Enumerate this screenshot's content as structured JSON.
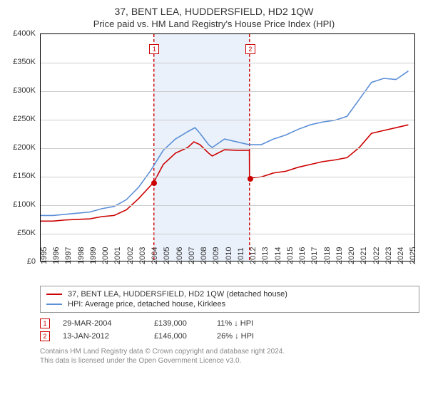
{
  "title": "37, BENT LEA, HUDDERSFIELD, HD2 1QW",
  "subtitle": "Price paid vs. HM Land Registry's House Price Index (HPI)",
  "colors": {
    "price_series": "#cc0000",
    "hpi_series": "#5b8fd6",
    "ref_line": "#cc0000",
    "shade": "#eaf1fb",
    "grid": "#cccccc",
    "axis": "#000000",
    "text": "#333333",
    "footer": "#888888"
  },
  "chart": {
    "type": "line",
    "xlim": [
      1995,
      2025.5
    ],
    "ylim": [
      0,
      400000
    ],
    "ytick_step": 50000,
    "yticks": [
      "£0",
      "£50K",
      "£100K",
      "£150K",
      "£200K",
      "£250K",
      "£300K",
      "£350K",
      "£400K"
    ],
    "xticks": [
      1995,
      1996,
      1997,
      1998,
      1999,
      2000,
      2001,
      2002,
      2003,
      2004,
      2005,
      2006,
      2007,
      2008,
      2009,
      2010,
      2011,
      2012,
      2013,
      2014,
      2015,
      2016,
      2017,
      2018,
      2019,
      2020,
      2021,
      2022,
      2023,
      2024,
      2025
    ],
    "shade_range": [
      2004.24,
      2012.04
    ],
    "ref_lines": [
      {
        "id": "1",
        "x": 2004.24
      },
      {
        "id": "2",
        "x": 2012.04
      }
    ],
    "sale_points": [
      {
        "x": 2004.24,
        "y": 139000
      },
      {
        "x": 2012.04,
        "y": 146000
      }
    ],
    "series": {
      "price": [
        [
          1995,
          70000
        ],
        [
          1996,
          70000
        ],
        [
          1997,
          72000
        ],
        [
          1998,
          73000
        ],
        [
          1999,
          74000
        ],
        [
          2000,
          78000
        ],
        [
          2001,
          80000
        ],
        [
          2002,
          90000
        ],
        [
          2003,
          110000
        ],
        [
          2004.24,
          139000
        ],
        [
          2005,
          170000
        ],
        [
          2006,
          190000
        ],
        [
          2007,
          200000
        ],
        [
          2007.5,
          210000
        ],
        [
          2008,
          205000
        ],
        [
          2008.7,
          190000
        ],
        [
          2009,
          185000
        ],
        [
          2010,
          196000
        ],
        [
          2011,
          195000
        ],
        [
          2012.03,
          195000
        ],
        [
          2012.04,
          146000
        ],
        [
          2013,
          148000
        ],
        [
          2014,
          155000
        ],
        [
          2015,
          158000
        ],
        [
          2016,
          165000
        ],
        [
          2017,
          170000
        ],
        [
          2018,
          175000
        ],
        [
          2019,
          178000
        ],
        [
          2020,
          182000
        ],
        [
          2021,
          200000
        ],
        [
          2022,
          225000
        ],
        [
          2023,
          230000
        ],
        [
          2024,
          235000
        ],
        [
          2025,
          240000
        ]
      ],
      "hpi": [
        [
          1995,
          80000
        ],
        [
          1996,
          80000
        ],
        [
          1997,
          82000
        ],
        [
          1998,
          84000
        ],
        [
          1999,
          86000
        ],
        [
          2000,
          92000
        ],
        [
          2001,
          96000
        ],
        [
          2002,
          108000
        ],
        [
          2003,
          130000
        ],
        [
          2004,
          160000
        ],
        [
          2005,
          195000
        ],
        [
          2006,
          215000
        ],
        [
          2007,
          228000
        ],
        [
          2007.6,
          235000
        ],
        [
          2008,
          225000
        ],
        [
          2008.7,
          205000
        ],
        [
          2009,
          200000
        ],
        [
          2010,
          215000
        ],
        [
          2011,
          210000
        ],
        [
          2012,
          205000
        ],
        [
          2013,
          205000
        ],
        [
          2014,
          215000
        ],
        [
          2015,
          222000
        ],
        [
          2016,
          232000
        ],
        [
          2017,
          240000
        ],
        [
          2018,
          245000
        ],
        [
          2019,
          248000
        ],
        [
          2020,
          255000
        ],
        [
          2021,
          285000
        ],
        [
          2022,
          315000
        ],
        [
          2023,
          322000
        ],
        [
          2024,
          320000
        ],
        [
          2025,
          335000
        ]
      ]
    }
  },
  "legend": [
    {
      "color_key": "price_series",
      "label": "37, BENT LEA, HUDDERSFIELD, HD2 1QW (detached house)"
    },
    {
      "color_key": "hpi_series",
      "label": "HPI: Average price, detached house, Kirklees"
    }
  ],
  "sales": [
    {
      "ref": "1",
      "date": "29-MAR-2004",
      "price": "£139,000",
      "delta": "11% ↓ HPI"
    },
    {
      "ref": "2",
      "date": "13-JAN-2012",
      "price": "£146,000",
      "delta": "26% ↓ HPI"
    }
  ],
  "footer_lines": [
    "Contains HM Land Registry data © Crown copyright and database right 2024.",
    "This data is licensed under the Open Government Licence v3.0."
  ]
}
